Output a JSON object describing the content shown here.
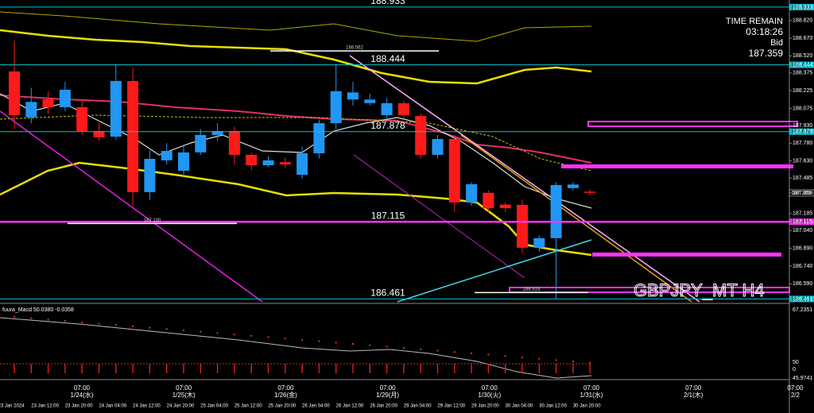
{
  "chart_data": {
    "type": "candlestick",
    "symbol_label": "GBPJPY_MT H4",
    "ylim": [
      186.437,
      188.993
    ],
    "yticks": [
      188.933,
      {
        "value": 188.82,
        "label": "188.820"
      },
      {
        "value": 188.67,
        "label": "188.670"
      },
      {
        "value": 188.52,
        "label": "188.520"
      },
      188.444,
      188.375,
      188.225,
      188.075,
      {
        "value": 187.93,
        "label": "187.930"
      },
      187.878,
      {
        "value": 187.78,
        "label": "187.780"
      },
      {
        "value": 187.63,
        "label": "187.630"
      },
      187.485,
      187.359,
      187.185,
      187.115,
      {
        "value": 187.04,
        "label": "187.040"
      },
      {
        "value": 186.89,
        "label": "186.890"
      },
      {
        "value": 186.74,
        "label": "186.740"
      },
      {
        "value": 186.59,
        "label": "186.590"
      },
      186.461
    ],
    "up_color": "#2196f3",
    "down_color": "#ff1a1a",
    "open": [
      188.388,
      188.0,
      188.152,
      188.085,
      188.085,
      187.883,
      187.836,
      188.307,
      187.366,
      187.635,
      187.547,
      187.702,
      187.85,
      187.883,
      187.682,
      187.594,
      187.62,
      187.513,
      187.695,
      187.95,
      188.15,
      188.12,
      188.018,
      188.119,
      188.01,
      187.682,
      187.816,
      187.278,
      187.36,
      187.26,
      187.258,
      186.895,
      186.976,
      187.4,
      187.37
    ],
    "close": [
      188.018,
      188.13,
      188.085,
      188.233,
      187.883,
      187.83,
      188.307,
      187.366,
      187.648,
      187.715,
      187.702,
      187.85,
      187.883,
      187.682,
      187.594,
      187.635,
      187.6,
      187.695,
      187.95,
      188.22,
      188.21,
      188.15,
      188.119,
      188.018,
      187.682,
      187.816,
      187.278,
      187.433,
      187.23,
      187.23,
      186.895,
      186.976,
      187.426,
      187.43,
      187.36
    ],
    "high": [
      188.65,
      188.25,
      188.22,
      188.3,
      188.15,
      187.95,
      188.45,
      188.42,
      187.72,
      187.78,
      187.77,
      187.9,
      187.95,
      187.92,
      187.7,
      187.67,
      187.66,
      187.75,
      187.98,
      188.45,
      188.3,
      188.2,
      188.16,
      188.14,
      188.03,
      187.85,
      187.85,
      187.45,
      187.38,
      187.28,
      187.3,
      187.0,
      187.45,
      187.45,
      187.39
    ],
    "low": [
      187.9,
      187.95,
      188.03,
      188.05,
      187.85,
      187.8,
      187.81,
      187.25,
      187.3,
      187.6,
      187.5,
      187.68,
      187.8,
      187.6,
      187.55,
      187.58,
      187.57,
      187.48,
      187.65,
      187.9,
      188.1,
      188.1,
      187.98,
      187.99,
      187.65,
      187.65,
      187.2,
      187.25,
      187.2,
      187.2,
      186.85,
      186.86,
      186.46,
      187.38,
      187.34
    ],
    "levels": [
      {
        "price": 188.933,
        "color": "#00c8d8"
      },
      {
        "price": 188.444,
        "color": "#00c8d8"
      },
      {
        "price": 187.878,
        "color": "#00c8d8"
      },
      {
        "price": 187.115,
        "color": "#ff33ff"
      },
      {
        "price": 186.461,
        "color": "#00c8d8"
      }
    ],
    "price_marks": [
      {
        "price": 188.562,
        "x0": 340,
        "x1": 552
      },
      {
        "price": 187.1,
        "label": "187.100",
        "x0": 85,
        "x1": 298
      },
      {
        "price": 186.515,
        "x0": 597,
        "x1": 740
      }
    ],
    "bid_box": {
      "price": 187.359
    },
    "info": {
      "title": "TIME REMAIN",
      "time": "03:18:26",
      "bid_label": "Bid",
      "bid": 187.359
    },
    "macd": {
      "label": "fuura_Macd 50.0380 -0.0358",
      "ticks": [
        "67.2351",
        "50",
        "0",
        "45.9741"
      ]
    },
    "time_axis": {
      "major": [
        {
          "time": "07:00",
          "date": "1/24(水)"
        },
        {
          "time": "07:00",
          "date": "1/25(木)"
        },
        {
          "time": "07:00",
          "date": "1/26(金)"
        },
        {
          "time": "07:00",
          "date": "1/29(月)"
        },
        {
          "time": "07:00",
          "date": "1/30(火)"
        },
        {
          "time": "07:00",
          "date": "1/31(水)"
        },
        {
          "time": "07:00",
          "date": "2/1(木)"
        },
        {
          "time": "07:00",
          "date": "2/2"
        }
      ],
      "minor": [
        "23 Jan 2024",
        "23 Jan 12:00",
        "23 Jan 20:00",
        "24 Jan 04:00",
        "24 Jan 12:00",
        "24 Jan 20:00",
        "25 Jan 04:00",
        "25 Jan 12:00",
        "25 Jan 20:00",
        "26 Jan 04:00",
        "26 Jan 12:00",
        "26 Jan 20:00",
        "29 Jan 04:00",
        "29 Jan 12:00",
        "29 Jan 20:00",
        "30 Jan 04:00",
        "30 Jan 12:00",
        "30 Jan 20:00"
      ]
    }
  }
}
